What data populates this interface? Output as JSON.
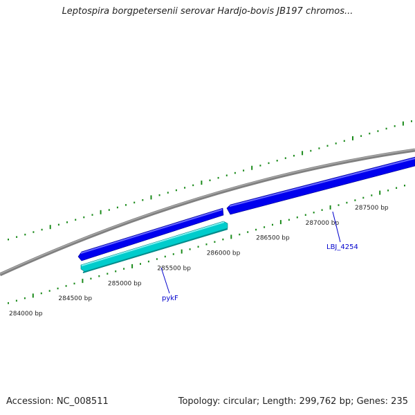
{
  "title": "Leptospira borgpetersenii serovar Hardjo-bovis JB197 chromos...",
  "footer": {
    "accession": "Accession: NC_008511",
    "summary": "Topology: circular; Length: 299,762 bp; Genes: 235"
  },
  "colors": {
    "backbone": "#808080",
    "forward_gene": "#0000ee",
    "reverse_gene": "#00cccc",
    "tick": "#1a8a1a",
    "label": "#0000cc"
  },
  "ticks": [
    {
      "label": "284000 bp"
    },
    {
      "label": "284500 bp"
    },
    {
      "label": "285000 bp"
    },
    {
      "label": "285500 bp"
    },
    {
      "label": "286000 bp"
    },
    {
      "label": "286500 bp"
    },
    {
      "label": "287000 bp"
    },
    {
      "label": "287500 bp"
    }
  ],
  "genes": [
    {
      "name": "pykF",
      "strand": "reverse"
    },
    {
      "name": "LBJ_4254",
      "strand": "forward"
    },
    {
      "name": "",
      "strand": "forward"
    }
  ]
}
